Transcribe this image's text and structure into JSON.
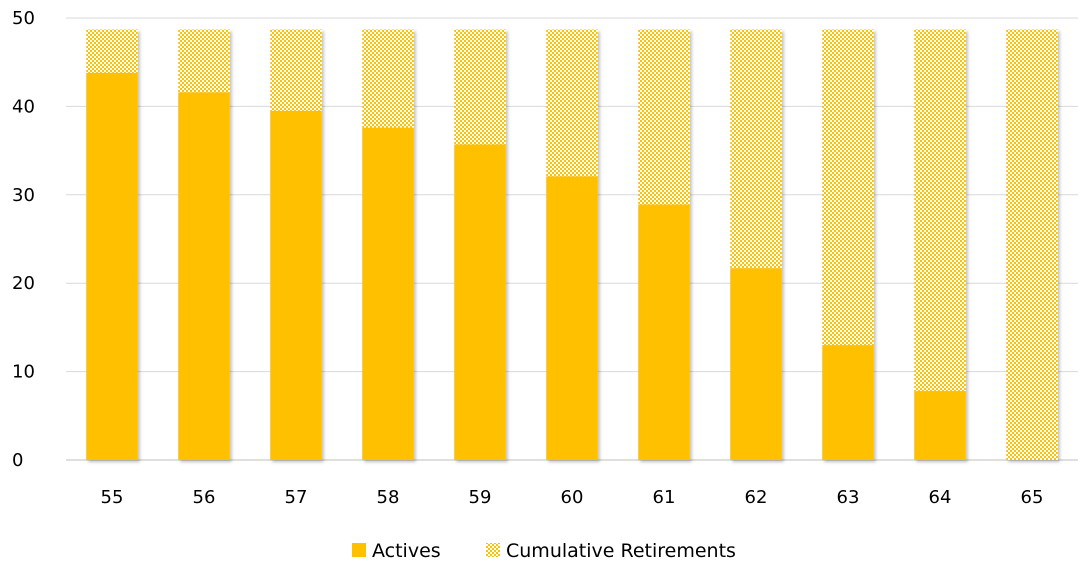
{
  "chart_data": {
    "type": "bar",
    "stacked": true,
    "title": "",
    "xlabel": "",
    "ylabel": "",
    "categories": [
      "55",
      "56",
      "57",
      "58",
      "59",
      "60",
      "61",
      "62",
      "63",
      "64",
      "65"
    ],
    "series": [
      {
        "name": "Actives",
        "values": [
          43.8,
          41.6,
          39.5,
          37.6,
          35.7,
          32.1,
          28.9,
          21.7,
          13.0,
          7.8,
          0
        ],
        "color": "#FFC000",
        "fill": "solid"
      },
      {
        "name": "Cumulative Retirements",
        "values": [
          4.9,
          7.1,
          9.2,
          11.1,
          13.0,
          16.6,
          19.8,
          27.0,
          35.7,
          40.9,
          48.7
        ],
        "color": "#FFC000",
        "fill": "checker-pattern"
      }
    ],
    "ylim": [
      0,
      50
    ],
    "yticks": [
      "0",
      "10",
      "20",
      "30",
      "40",
      "50"
    ],
    "grid": true,
    "legend": "bottom"
  }
}
